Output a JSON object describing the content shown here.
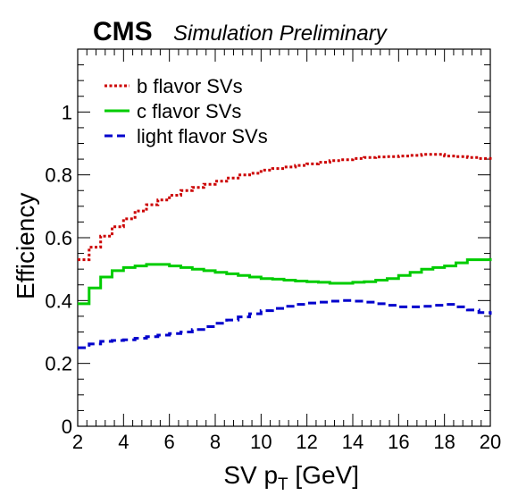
{
  "header": {
    "experiment": "CMS",
    "status": "Simulation Preliminary"
  },
  "chart_data": {
    "type": "line",
    "xlabel": "SV p",
    "xlabel_sub": "T",
    "xlabel_unit": " [GeV]",
    "ylabel": "Efficiency",
    "xlim": [
      2,
      20
    ],
    "ylim": [
      0,
      1.2
    ],
    "xticks": [
      2,
      4,
      6,
      8,
      10,
      12,
      14,
      16,
      18,
      20
    ],
    "yticks": [
      0,
      0.2,
      0.4,
      0.6,
      0.8,
      1
    ],
    "ytick_labels": [
      "0",
      "0.2",
      "0.4",
      "0.6",
      "0.8",
      "1"
    ],
    "grid": false,
    "legend_position": "top-left",
    "x": [
      2,
      2.5,
      3,
      3.5,
      4,
      4.5,
      5,
      5.5,
      6,
      6.5,
      7,
      7.5,
      8,
      8.5,
      9,
      9.5,
      10,
      10.5,
      11,
      11.5,
      12,
      12.5,
      13,
      13.5,
      14,
      14.5,
      15,
      15.5,
      16,
      16.5,
      17,
      17.5,
      18,
      18.5,
      19,
      19.5,
      20
    ],
    "series": [
      {
        "name": "b flavor SVs",
        "color": "#cc0000",
        "style": "dotted",
        "values": [
          0.53,
          0.57,
          0.605,
          0.635,
          0.66,
          0.685,
          0.705,
          0.72,
          0.735,
          0.75,
          0.76,
          0.77,
          0.78,
          0.79,
          0.8,
          0.805,
          0.815,
          0.82,
          0.825,
          0.83,
          0.835,
          0.84,
          0.845,
          0.848,
          0.852,
          0.855,
          0.857,
          0.858,
          0.86,
          0.862,
          0.865,
          0.865,
          0.86,
          0.858,
          0.855,
          0.852,
          0.848
        ]
      },
      {
        "name": "c flavor SVs",
        "color": "#00cc00",
        "style": "solid",
        "values": [
          0.39,
          0.44,
          0.475,
          0.495,
          0.505,
          0.51,
          0.515,
          0.515,
          0.51,
          0.505,
          0.5,
          0.495,
          0.49,
          0.485,
          0.48,
          0.475,
          0.47,
          0.468,
          0.465,
          0.462,
          0.46,
          0.458,
          0.455,
          0.455,
          0.458,
          0.46,
          0.465,
          0.47,
          0.48,
          0.49,
          0.5,
          0.505,
          0.51,
          0.52,
          0.53,
          0.53,
          0.535
        ]
      },
      {
        "name": "light flavor SVs",
        "color": "#0000cc",
        "style": "dashed",
        "values": [
          0.25,
          0.262,
          0.27,
          0.273,
          0.275,
          0.28,
          0.285,
          0.29,
          0.295,
          0.3,
          0.308,
          0.317,
          0.328,
          0.338,
          0.348,
          0.358,
          0.368,
          0.375,
          0.382,
          0.388,
          0.392,
          0.395,
          0.398,
          0.4,
          0.398,
          0.395,
          0.39,
          0.385,
          0.38,
          0.38,
          0.382,
          0.385,
          0.388,
          0.38,
          0.37,
          0.362,
          0.355
        ]
      }
    ]
  }
}
